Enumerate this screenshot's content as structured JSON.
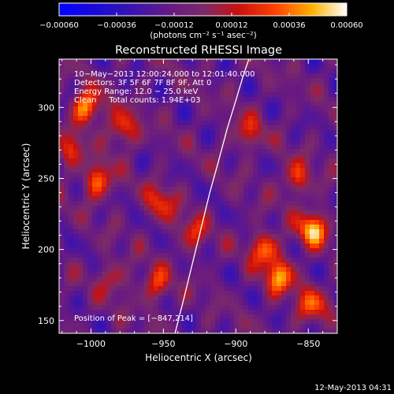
{
  "chart_data": {
    "type": "heatmap",
    "title": "Reconstructed RHESSI Image",
    "xlabel": "Heliocentric X (arcsec)",
    "ylabel": "Heliocentric Y (arcsec)",
    "xlim": [
      -1022,
      -830
    ],
    "ylim": [
      141,
      334
    ],
    "x_ticks": [
      -1000,
      -950,
      -900,
      -850
    ],
    "y_ticks": [
      150,
      200,
      250,
      300
    ],
    "x_tick_labels": [
      "−1000",
      "−950",
      "−900",
      "−850"
    ],
    "y_tick_labels": [
      "150",
      "200",
      "250",
      "300"
    ],
    "colorbar": {
      "range": [
        -0.0006,
        0.0006
      ],
      "ticks": [
        -0.0006,
        -0.00036,
        -0.00012,
        0.00012,
        0.00036,
        0.0006
      ],
      "tick_labels": [
        "−0.00060",
        "−0.00036",
        "−0.00012",
        "0.00012",
        "0.00036",
        "0.00060"
      ],
      "label": "(photons cm⁻² s⁻¹ asec⁻²)",
      "colormap": "blue-purple-red-yellow-white"
    },
    "annotations": [
      "10−May−2013 12:00:24.000 to 12:01:40.000",
      "Detectors: 3F 5F 6F 7F 8F 9F, Att 0",
      "Energy Range: 12.0 − 25.0 keV",
      "Clean     Total counts: 1.94E+03"
    ],
    "peak_label": "Position of Peak = [−847,214]",
    "peak": [
      -847,
      214
    ],
    "limb_curve_x": [
      -942,
      -936,
      -930,
      -924,
      -918,
      -912,
      -906,
      -900,
      -895,
      -891
    ],
    "limb_curve_y": [
      141,
      165,
      190,
      215,
      240,
      262,
      285,
      305,
      322,
      334
    ],
    "emission_sources": [
      {
        "x": -1003,
        "y": 300,
        "amp": 0.00055
      },
      {
        "x": -995,
        "y": 248,
        "amp": 0.00045
      },
      {
        "x": -978,
        "y": 285,
        "amp": 0.0004
      },
      {
        "x": -952,
        "y": 233,
        "amp": 0.00035
      },
      {
        "x": -930,
        "y": 212,
        "amp": 0.0003
      },
      {
        "x": -892,
        "y": 282,
        "amp": 0.0003
      },
      {
        "x": -880,
        "y": 200,
        "amp": 0.00045
      },
      {
        "x": -870,
        "y": 180,
        "amp": 0.0005
      },
      {
        "x": -847,
        "y": 214,
        "amp": 0.0006
      },
      {
        "x": -858,
        "y": 250,
        "amp": 0.00035
      },
      {
        "x": -848,
        "y": 160,
        "amp": 0.0004
      },
      {
        "x": -955,
        "y": 175,
        "amp": 0.00035
      },
      {
        "x": -985,
        "y": 180,
        "amp": 0.00025
      },
      {
        "x": -1015,
        "y": 270,
        "amp": 0.0003
      }
    ]
  },
  "footer": {
    "timestamp": "12-May-2013 04:31"
  }
}
